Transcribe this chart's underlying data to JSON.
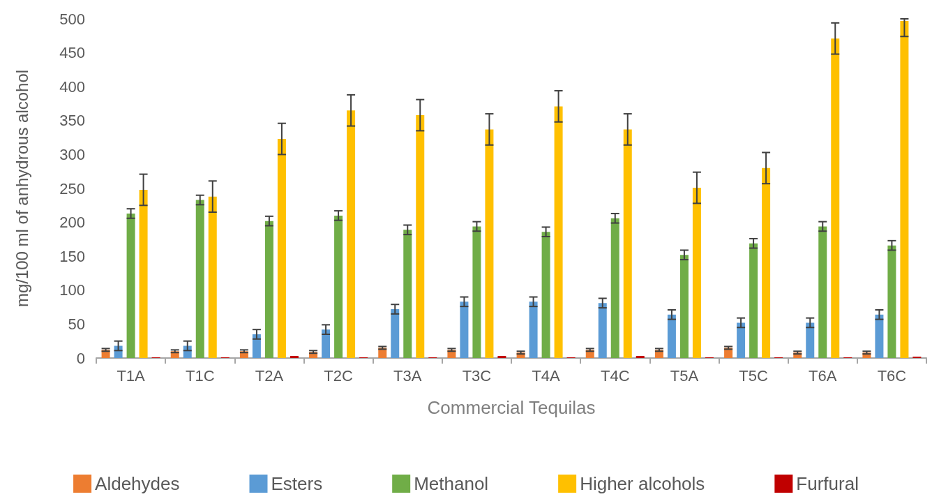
{
  "chart_data": {
    "type": "bar",
    "xlabel": "Commercial Tequilas",
    "ylabel": "mg/100 ml of anhydrous alcohol",
    "categories": [
      "T1A",
      "T1C",
      "T2A",
      "T2C",
      "T3A",
      "T3C",
      "T4A",
      "T4C",
      "T5A",
      "T5C",
      "T6A",
      "T6C"
    ],
    "series": [
      {
        "name": "Aldehydes",
        "color": "#ed7d31",
        "values": [
          12,
          10,
          10,
          9,
          15,
          12,
          8,
          12,
          12,
          15,
          8,
          8
        ],
        "errors": [
          2,
          2,
          2,
          2,
          2,
          2,
          2,
          2,
          2,
          2,
          2,
          2
        ]
      },
      {
        "name": "Esters",
        "color": "#5b9bd5",
        "values": [
          18,
          18,
          35,
          42,
          72,
          83,
          83,
          81,
          64,
          52,
          52,
          64
        ],
        "errors": [
          7,
          7,
          7,
          7,
          7,
          7,
          7,
          7,
          7,
          7,
          7,
          7
        ]
      },
      {
        "name": "Methanol",
        "color": "#70ad47",
        "values": [
          213,
          233,
          202,
          210,
          189,
          194,
          186,
          206,
          152,
          169,
          194,
          166
        ],
        "errors": [
          7,
          7,
          7,
          7,
          7,
          7,
          7,
          7,
          7,
          7,
          7,
          7
        ]
      },
      {
        "name": "Higher alcohols",
        "color": "#ffc000",
        "values": [
          248,
          238,
          323,
          365,
          358,
          337,
          371,
          337,
          251,
          280,
          471,
          497
        ],
        "errors": [
          23,
          23,
          23,
          23,
          23,
          23,
          23,
          23,
          23,
          23,
          23,
          [
            474,
            500
          ]
        ]
      },
      {
        "name": "Furfural",
        "color": "#c00000",
        "values": [
          1,
          1,
          3,
          1,
          1,
          3,
          1,
          3,
          1,
          1,
          1,
          2
        ]
      }
    ],
    "ylim": [
      0,
      500
    ],
    "yticks": [
      0,
      50,
      100,
      150,
      200,
      250,
      300,
      350,
      400,
      450,
      500
    ],
    "grid": false,
    "legend": "bottom"
  }
}
